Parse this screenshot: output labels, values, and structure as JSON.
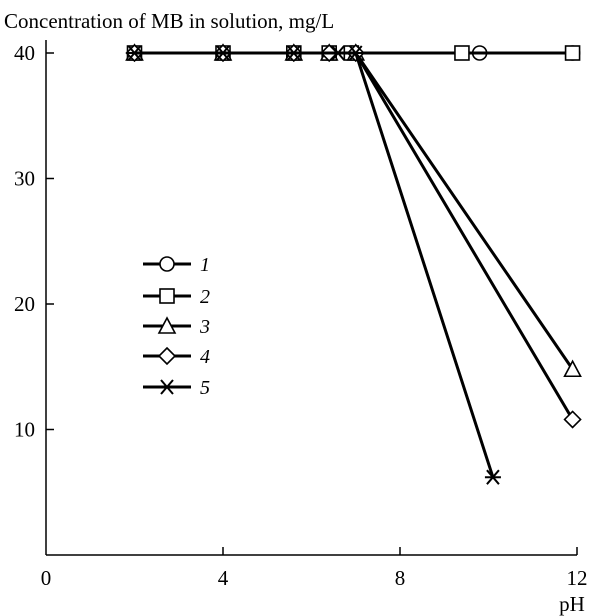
{
  "chart_data": {
    "type": "line",
    "title": "",
    "ylabel": "Concentration of MB in solution, mg/L",
    "xlabel": "pH",
    "xlim": [
      0,
      12
    ],
    "ylim": [
      0,
      40
    ],
    "x_ticks": [
      "0",
      "4",
      "8",
      "12"
    ],
    "y_ticks": [
      "10",
      "20",
      "30",
      "40"
    ],
    "grid": false,
    "legend_position": "left-middle",
    "series": [
      {
        "name": "1",
        "marker": "circle",
        "points": [
          [
            2,
            40
          ],
          [
            4,
            40
          ],
          [
            5.6,
            40
          ],
          [
            6.4,
            40
          ],
          [
            6.9,
            40
          ],
          [
            9.8,
            40
          ],
          [
            11.9,
            40
          ]
        ]
      },
      {
        "name": "2",
        "marker": "square",
        "points": [
          [
            2,
            40
          ],
          [
            4,
            40
          ],
          [
            5.6,
            40
          ],
          [
            6.4,
            40
          ],
          [
            6.9,
            40
          ],
          [
            9.4,
            40
          ],
          [
            11.9,
            40
          ]
        ]
      },
      {
        "name": "3",
        "marker": "triangle",
        "points": [
          [
            2,
            40
          ],
          [
            4,
            40
          ],
          [
            5.6,
            40
          ],
          [
            6.4,
            40
          ],
          [
            7,
            40
          ],
          [
            11.9,
            14.8
          ]
        ]
      },
      {
        "name": "4",
        "marker": "diamond",
        "points": [
          [
            2,
            40
          ],
          [
            4,
            40
          ],
          [
            5.6,
            40
          ],
          [
            6.4,
            40
          ],
          [
            7,
            40
          ],
          [
            11.9,
            10.8
          ]
        ]
      },
      {
        "name": "5",
        "marker": "star",
        "points": [
          [
            2,
            40
          ],
          [
            4,
            40
          ],
          [
            5.6,
            40
          ],
          [
            6.6,
            40
          ],
          [
            7,
            40
          ],
          [
            10.1,
            6.2
          ]
        ]
      }
    ]
  }
}
